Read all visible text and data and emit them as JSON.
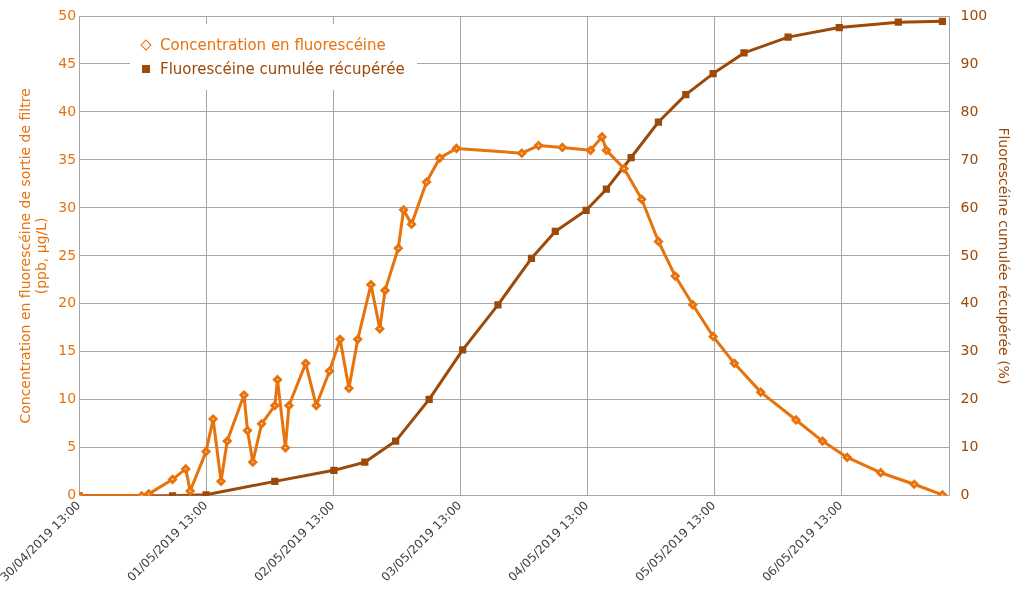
{
  "chart_data": {
    "type": "line",
    "ylabel": "Concentration en fluorescéine de sortie de filtre\n(ppb, µg/L)",
    "y2label": "Fluorescéine cumulée récupérée (%)",
    "xlim": [
      "2019-04-30T13:00",
      "2019-05-07T09:30"
    ],
    "xticks": [
      {
        "value": "2019-04-30T13:00",
        "label": "30/04/2019 13:00"
      },
      {
        "value": "2019-05-01T13:00",
        "label": "01/05/2019 13:00"
      },
      {
        "value": "2019-05-02T13:00",
        "label": "02/05/2019 13:00"
      },
      {
        "value": "2019-05-03T13:00",
        "label": "03/05/2019 13:00"
      },
      {
        "value": "2019-05-04T13:00",
        "label": "04/05/2019 13:00"
      },
      {
        "value": "2019-05-05T13:00",
        "label": "05/05/2019 13:00"
      },
      {
        "value": "2019-05-06T13:00",
        "label": "06/05/2019 13:00"
      }
    ],
    "ylim": [
      0,
      50
    ],
    "yticks": [
      0,
      5,
      10,
      15,
      20,
      25,
      30,
      35,
      40,
      45,
      50
    ],
    "y2lim": [
      0,
      100
    ],
    "y2ticks": [
      0,
      10,
      20,
      30,
      40,
      50,
      60,
      70,
      80,
      90,
      100
    ],
    "grid": true,
    "legend": "top left",
    "series": [
      {
        "name": "Concentration en fluorescéine",
        "color": "#e8720c",
        "marker": "diamond",
        "axis": "y",
        "x": [
          "2019-04-30T13:00",
          "2019-05-01T00:50",
          "2019-05-01T02:10",
          "2019-05-01T06:40",
          "2019-05-01T09:10",
          "2019-05-01T10:00",
          "2019-05-01T13:00",
          "2019-05-01T14:20",
          "2019-05-01T15:50",
          "2019-05-01T17:00",
          "2019-05-01T20:10",
          "2019-05-01T20:50",
          "2019-05-01T21:50",
          "2019-05-01T23:30",
          "2019-05-02T02:00",
          "2019-05-02T02:30",
          "2019-05-02T04:00",
          "2019-05-02T04:40",
          "2019-05-02T07:50",
          "2019-05-02T09:50",
          "2019-05-02T12:20",
          "2019-05-02T14:20",
          "2019-05-02T16:00",
          "2019-05-02T17:40",
          "2019-05-02T20:10",
          "2019-05-02T21:50",
          "2019-05-02T22:50",
          "2019-05-03T01:20",
          "2019-05-03T02:20",
          "2019-05-03T03:50",
          "2019-05-03T06:40",
          "2019-05-03T09:10",
          "2019-05-03T12:20",
          "2019-05-04T00:40",
          "2019-05-04T03:50",
          "2019-05-04T08:20",
          "2019-05-04T13:40",
          "2019-05-04T15:50",
          "2019-05-04T16:40",
          "2019-05-04T20:00",
          "2019-05-04T23:20",
          "2019-05-05T02:30",
          "2019-05-05T05:40",
          "2019-05-05T09:00",
          "2019-05-05T12:50",
          "2019-05-05T16:50",
          "2019-05-05T21:50",
          "2019-05-06T04:30",
          "2019-05-06T09:30",
          "2019-05-06T14:10",
          "2019-05-06T20:30",
          "2019-05-07T02:50",
          "2019-05-07T08:10"
        ],
        "values": [
          0,
          0,
          0.2,
          1.7,
          2.8,
          0.5,
          4.6,
          8,
          1.5,
          5.7,
          10.5,
          6.8,
          3.5,
          7.5,
          9.4,
          12.1,
          5,
          9.4,
          13.8,
          9.4,
          13,
          16.3,
          11.2,
          16.3,
          22,
          17.4,
          21.4,
          25.8,
          29.8,
          28.3,
          32.7,
          35.2,
          36.2,
          35.7,
          36.5,
          36.3,
          36,
          37.4,
          36,
          34.1,
          30.9,
          26.5,
          22.9,
          19.9,
          16.6,
          13.8,
          10.8,
          7.9,
          5.7,
          4,
          2.4,
          1.2,
          0.1
        ]
      },
      {
        "name": "Fluorescéine cumulée récupérée",
        "color": "#9c4a0a",
        "marker": "square",
        "axis": "y2",
        "x": [
          "2019-04-30T13:00",
          "2019-05-01T06:40",
          "2019-05-01T13:00",
          "2019-05-02T02:00",
          "2019-05-02T13:10",
          "2019-05-02T19:00",
          "2019-05-03T00:50",
          "2019-05-03T07:10",
          "2019-05-03T13:30",
          "2019-05-03T20:10",
          "2019-05-04T02:30",
          "2019-05-04T07:00",
          "2019-05-04T12:50",
          "2019-05-04T16:40",
          "2019-05-04T21:20",
          "2019-05-05T02:30",
          "2019-05-05T07:40",
          "2019-05-05T12:50",
          "2019-05-05T18:40",
          "2019-05-06T03:00",
          "2019-05-06T12:40",
          "2019-05-06T23:50",
          "2019-05-07T08:10"
        ],
        "values": [
          0,
          0,
          0.2,
          3,
          5.3,
          7,
          11.4,
          20.1,
          30.4,
          39.8,
          49.5,
          55.1,
          59.5,
          63.9,
          70.5,
          77.9,
          83.6,
          88,
          92.3,
          95.6,
          97.6,
          98.7,
          98.9
        ]
      }
    ]
  }
}
